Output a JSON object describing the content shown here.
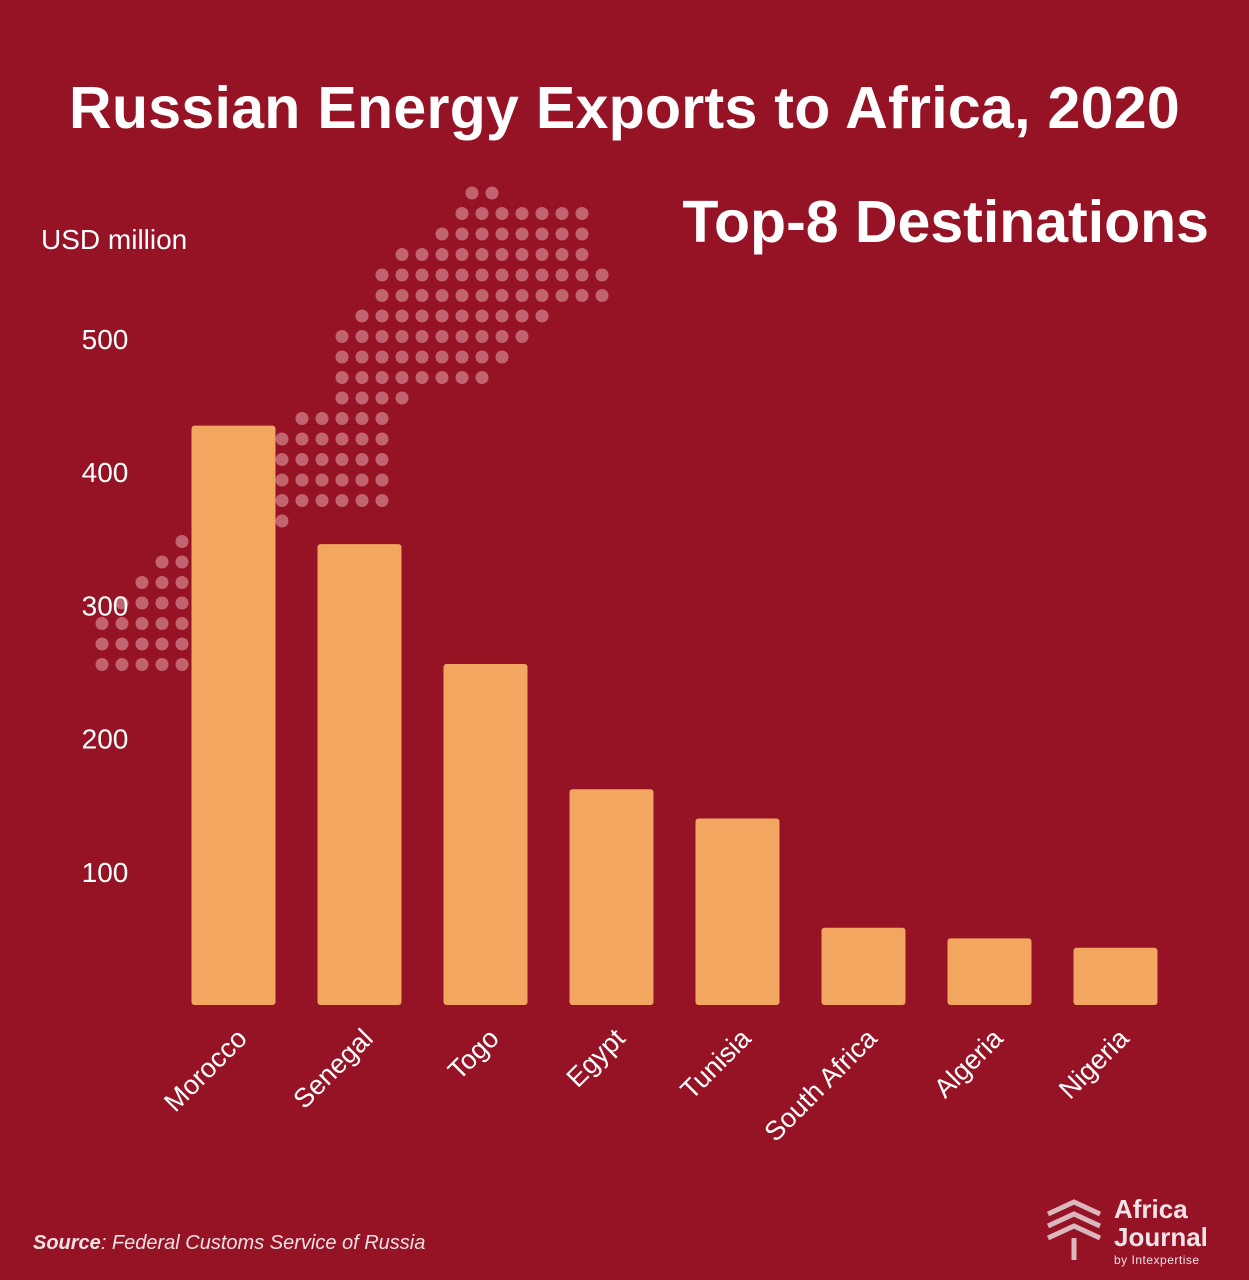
{
  "title": "Russian Energy Exports to Africa, 2020",
  "subtitle": "Top-8 Destinations",
  "source_label": "Source",
  "source_text": ": Federal Customs Service of Russia",
  "logo": {
    "line1": "Africa",
    "line2": "Journal",
    "line3": "by Intexpertise"
  },
  "colors": {
    "background": "#961326",
    "bar": "#f2a660",
    "dots": "#c2646f"
  },
  "chart_data": {
    "type": "bar",
    "title": "Russian Energy Exports to Africa, 2020",
    "subtitle": "Top-8 Destinations",
    "ylabel": "USD million",
    "xlabel": "",
    "categories": [
      "Morocco",
      "Senegal",
      "Togo",
      "Egypt",
      "Tunisia",
      "South Africa",
      "Algeria",
      "Nigeria"
    ],
    "values": [
      435,
      346,
      256,
      162,
      140,
      58,
      50,
      43
    ],
    "yticks": [
      100,
      200,
      300,
      400,
      500
    ],
    "ylim": [
      0,
      520
    ],
    "grid": false,
    "legend": "none"
  }
}
